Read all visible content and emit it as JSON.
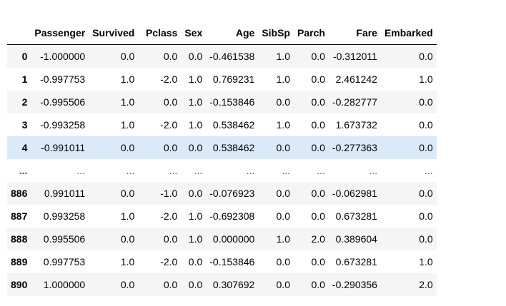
{
  "dataframe": {
    "index_header": "",
    "columns": [
      "Passenger",
      "Survived",
      "Pclass",
      "Sex",
      "Age",
      "SibSp",
      "Parch",
      "Fare",
      "Embarked"
    ],
    "rows": [
      {
        "index": "0",
        "cells": [
          "-1.000000",
          "0.0",
          "0.0",
          "0.0",
          "-0.461538",
          "1.0",
          "0.0",
          "-0.312011",
          "0.0"
        ]
      },
      {
        "index": "1",
        "cells": [
          "-0.997753",
          "1.0",
          "-2.0",
          "1.0",
          "0.769231",
          "1.0",
          "0.0",
          "2.461242",
          "1.0"
        ]
      },
      {
        "index": "2",
        "cells": [
          "-0.995506",
          "1.0",
          "0.0",
          "1.0",
          "-0.153846",
          "0.0",
          "0.0",
          "-0.282777",
          "0.0"
        ]
      },
      {
        "index": "3",
        "cells": [
          "-0.993258",
          "1.0",
          "-2.0",
          "1.0",
          "0.538462",
          "1.0",
          "0.0",
          "1.673732",
          "0.0"
        ]
      },
      {
        "index": "4",
        "cells": [
          "-0.991011",
          "0.0",
          "0.0",
          "0.0",
          "0.538462",
          "0.0",
          "0.0",
          "-0.277363",
          "0.0"
        ]
      },
      {
        "index": "...",
        "cells": [
          "...",
          "...",
          "...",
          "...",
          "...",
          "...",
          "...",
          "...",
          "..."
        ]
      },
      {
        "index": "886",
        "cells": [
          "0.991011",
          "0.0",
          "-1.0",
          "0.0",
          "-0.076923",
          "0.0",
          "0.0",
          "-0.062981",
          "0.0"
        ]
      },
      {
        "index": "887",
        "cells": [
          "0.993258",
          "1.0",
          "-2.0",
          "1.0",
          "-0.692308",
          "0.0",
          "0.0",
          "0.673281",
          "0.0"
        ]
      },
      {
        "index": "888",
        "cells": [
          "0.995506",
          "0.0",
          "0.0",
          "1.0",
          "0.000000",
          "1.0",
          "2.0",
          "0.389604",
          "0.0"
        ]
      },
      {
        "index": "889",
        "cells": [
          "0.997753",
          "1.0",
          "-2.0",
          "0.0",
          "-0.153846",
          "0.0",
          "0.0",
          "0.673281",
          "1.0"
        ]
      },
      {
        "index": "890",
        "cells": [
          "1.000000",
          "0.0",
          "0.0",
          "0.0",
          "0.307692",
          "0.0",
          "0.0",
          "-0.290356",
          "2.0"
        ]
      }
    ],
    "hover_row_index": "4",
    "colors": {
      "stripe": "#f5f5f5",
      "hover": "#dbeaf9",
      "header_rule": "#000000"
    }
  }
}
